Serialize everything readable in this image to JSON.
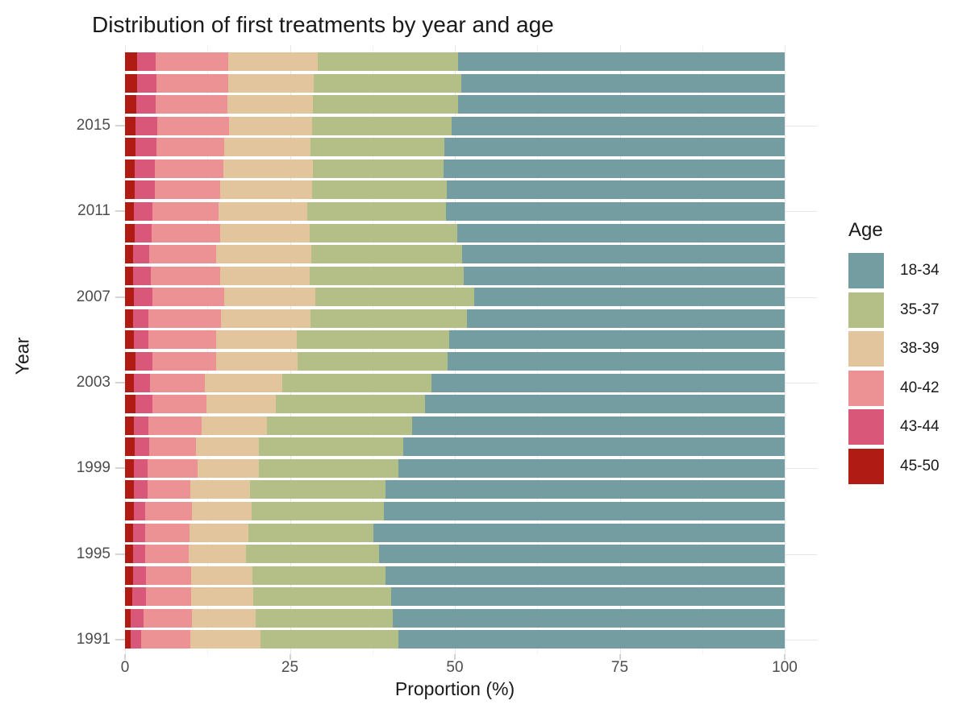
{
  "title": "Distribution of first treatments by year and age",
  "x_axis": {
    "title": "Proportion (%)",
    "tick_labels": [
      "0",
      "25",
      "50",
      "75",
      "100"
    ],
    "tick_values": [
      0,
      25,
      50,
      75,
      100
    ]
  },
  "y_axis": {
    "title": "Year",
    "tick_labels": [
      "2015",
      "2011",
      "2007",
      "2003",
      "1999",
      "1995",
      "1991"
    ],
    "tick_values": [
      2015,
      2011,
      2007,
      2003,
      1999,
      1995,
      1991
    ]
  },
  "legend": {
    "title": "Age",
    "entries": [
      {
        "label": "18-34",
        "color": "#739DA1"
      },
      {
        "label": "35-37",
        "color": "#B4BE87"
      },
      {
        "label": "38-39",
        "color": "#E2C49D"
      },
      {
        "label": "40-42",
        "color": "#EC9294"
      },
      {
        "label": "43-44",
        "color": "#D95778"
      },
      {
        "label": "45-50",
        "color": "#B01C14"
      }
    ]
  },
  "chart_data": {
    "type": "bar",
    "variant": "horizontal-stacked-100pct",
    "title": "Distribution of first treatments by year and age",
    "xlabel": "Proportion (%)",
    "ylabel": "Year",
    "xlim": [
      0,
      100
    ],
    "grid": "on",
    "legend_position": "right",
    "stack_order_left_to_right": [
      "45-50",
      "43-44",
      "40-42",
      "38-39",
      "35-37",
      "18-34"
    ],
    "categories": [
      1991,
      1992,
      1993,
      1994,
      1995,
      1996,
      1997,
      1998,
      1999,
      2000,
      2001,
      2002,
      2003,
      2004,
      2005,
      2006,
      2007,
      2008,
      2009,
      2010,
      2011,
      2012,
      2013,
      2014,
      2015,
      2016,
      2017,
      2018
    ],
    "series": [
      {
        "name": "45-50",
        "color": "#B01C14",
        "values": [
          0.8,
          0.9,
          1.1,
          1.2,
          1.2,
          1.2,
          1.3,
          1.3,
          1.3,
          1.5,
          1.4,
          1.6,
          1.4,
          1.6,
          1.3,
          1.2,
          1.4,
          1.2,
          1.2,
          1.5,
          1.4,
          1.5,
          1.5,
          1.6,
          1.6,
          1.7,
          1.8,
          1.8
        ]
      },
      {
        "name": "43-44",
        "color": "#D95778",
        "values": [
          1.6,
          1.9,
          2.1,
          2.0,
          1.9,
          1.9,
          1.8,
          2.1,
          2.1,
          2.2,
          2.2,
          2.5,
          2.4,
          2.6,
          2.3,
          2.4,
          2.7,
          2.7,
          2.5,
          2.5,
          2.7,
          3.0,
          3.0,
          3.2,
          3.3,
          3.0,
          3.0,
          2.8
        ]
      },
      {
        "name": "40-42",
        "color": "#EC9294",
        "values": [
          7.5,
          7.3,
          6.8,
          6.8,
          6.6,
          6.7,
          7.1,
          6.5,
          7.6,
          7.1,
          8.0,
          8.3,
          8.3,
          9.6,
          10.2,
          11.0,
          10.9,
          10.5,
          10.1,
          10.4,
          10.1,
          9.9,
          10.4,
          10.2,
          10.9,
          10.8,
          10.9,
          11.1
        ]
      },
      {
        "name": "38-39",
        "color": "#E2C49D",
        "values": [
          10.7,
          9.7,
          9.5,
          9.3,
          8.6,
          8.9,
          9.0,
          9.0,
          9.3,
          9.5,
          9.9,
          10.5,
          11.7,
          12.4,
          12.2,
          13.5,
          13.9,
          13.6,
          14.5,
          13.6,
          13.4,
          14.0,
          13.6,
          13.1,
          12.6,
          13.0,
          12.9,
          13.5
        ]
      },
      {
        "name": "35-37",
        "color": "#B4BE87",
        "values": [
          20.8,
          20.8,
          20.9,
          20.2,
          20.2,
          18.9,
          20.1,
          20.6,
          21.2,
          21.9,
          22.0,
          22.6,
          22.7,
          22.7,
          23.1,
          23.7,
          24.0,
          23.4,
          22.8,
          22.4,
          21.1,
          20.4,
          19.8,
          20.3,
          21.1,
          22.0,
          22.4,
          21.3
        ]
      },
      {
        "name": "18-34",
        "color": "#739DA1",
        "values": [
          58.6,
          59.4,
          59.6,
          60.5,
          61.5,
          62.4,
          60.7,
          60.5,
          58.5,
          57.8,
          56.5,
          54.5,
          53.5,
          51.1,
          50.9,
          48.2,
          47.1,
          48.6,
          48.9,
          49.6,
          51.3,
          51.2,
          51.7,
          51.6,
          50.5,
          49.5,
          49.0,
          49.5
        ]
      }
    ]
  }
}
